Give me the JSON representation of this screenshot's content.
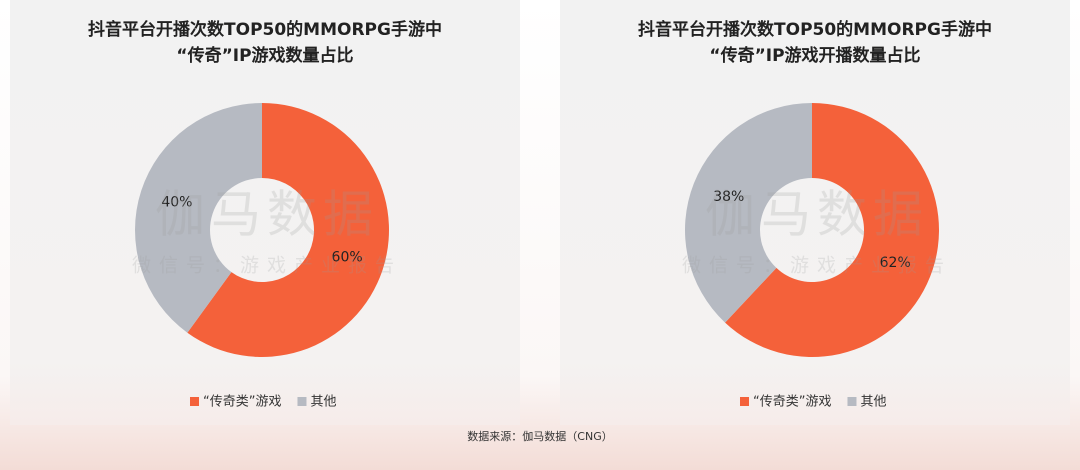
{
  "chart_data": [
    {
      "type": "donut",
      "title": [
        "抖音平台开播次数TOP50的MMORPG手游中",
        "“传奇”IP游戏数量占比"
      ],
      "categories": [
        "“传奇类”游戏",
        "其他"
      ],
      "values": [
        60,
        40
      ],
      "value_labels": [
        "60%",
        "40%"
      ],
      "colors": [
        "#f4613a",
        "#b6bac2"
      ]
    },
    {
      "type": "donut",
      "title": [
        "抖音平台开播次数TOP50的MMORPG手游中",
        "“传奇”IP游戏开播数量占比"
      ],
      "categories": [
        "“传奇类”游戏",
        "其他"
      ],
      "values": [
        62,
        38
      ],
      "value_labels": [
        "62%",
        "38%"
      ],
      "colors": [
        "#f4613a",
        "#b6bac2"
      ]
    }
  ],
  "watermark": {
    "main": "伽马数据",
    "sub": "微信号：游戏产业报告"
  },
  "source": "数据来源：伽马数据（CNG）"
}
